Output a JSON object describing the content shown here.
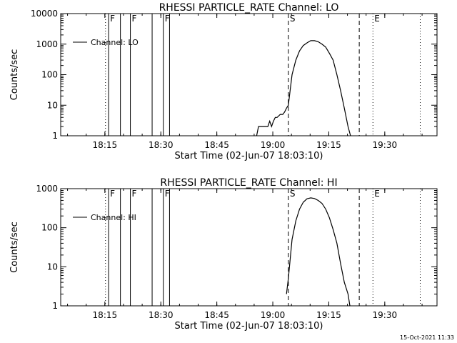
{
  "footer_timestamp": "15-Oct-2021 11:33",
  "chart_data": [
    {
      "type": "line",
      "title": "RHESSI PARTICLE_RATE Channel: LO",
      "xlabel": "Start Time (02-Jun-07 18:03:10)",
      "ylabel": "Counts/sec",
      "x_tick_labels": [
        "18:15",
        "18:30",
        "18:45",
        "19:00",
        "19:15",
        "19:30"
      ],
      "y_tick_labels": [
        "1",
        "10",
        "100",
        "1000",
        "10000"
      ],
      "y_scale": "log",
      "xlim": [
        "18:03:10",
        "19:44:00"
      ],
      "ylim": [
        1,
        10000
      ],
      "legend": {
        "label": "Channel: LO",
        "position": "top-left"
      },
      "markers": [
        {
          "label": "F",
          "time": "18:16:00",
          "style": "solid"
        },
        {
          "label": "",
          "time": "18:19:10",
          "style": "solid"
        },
        {
          "label": "F",
          "time": "18:21:50",
          "style": "solid"
        },
        {
          "label": "",
          "time": "18:27:40",
          "style": "solid"
        },
        {
          "label": "F",
          "time": "18:30:40",
          "style": "solid"
        },
        {
          "label": "",
          "time": "18:32:20",
          "style": "solid"
        },
        {
          "label": "S",
          "time": "19:04:10",
          "style": "dashed"
        },
        {
          "label": "",
          "time": "19:23:10",
          "style": "dashed"
        },
        {
          "label": "E",
          "time": "19:26:50",
          "style": "dotted"
        },
        {
          "label": "",
          "time": "18:15:10",
          "style": "dotted"
        },
        {
          "label": "",
          "time": "19:39:30",
          "style": "dotted"
        }
      ],
      "series": [
        {
          "x": [
            "18:55:40",
            "18:56:10",
            "18:56:40",
            "18:57:10",
            "18:58:00",
            "18:58:40",
            "18:59:10",
            "18:59:40",
            "19:00:10",
            "19:00:40",
            "19:01:10",
            "19:02:00",
            "19:02:40",
            "19:03:10",
            "19:03:40",
            "19:04:10",
            "19:05:10",
            "19:06:10",
            "19:07:10",
            "19:08:10",
            "19:09:10",
            "19:10:10",
            "19:11:10",
            "19:12:10",
            "19:13:10",
            "19:14:10",
            "19:15:10",
            "19:16:10",
            "19:17:10",
            "19:18:10",
            "19:19:10",
            "19:20:10",
            "19:20:50"
          ],
          "y": [
            1,
            2,
            2,
            2,
            2,
            2,
            3,
            2,
            3,
            4,
            4,
            5,
            5,
            6,
            8,
            10,
            100,
            300,
            600,
            900,
            1100,
            1300,
            1300,
            1200,
            1000,
            800,
            500,
            300,
            100,
            30,
            8,
            2,
            1
          ]
        }
      ]
    },
    {
      "type": "line",
      "title": "RHESSI PARTICLE_RATE Channel: HI",
      "xlabel": "Start Time (02-Jun-07 18:03:10)",
      "ylabel": "Counts/sec",
      "x_tick_labels": [
        "18:15",
        "18:30",
        "18:45",
        "19:00",
        "19:15",
        "19:30"
      ],
      "y_tick_labels": [
        "1",
        "10",
        "100",
        "1000"
      ],
      "y_scale": "log",
      "xlim": [
        "18:03:10",
        "19:44:00"
      ],
      "ylim": [
        1,
        1000
      ],
      "legend": {
        "label": "Channel: HI",
        "position": "top-left"
      },
      "markers": [
        {
          "label": "F",
          "time": "18:16:00",
          "style": "solid"
        },
        {
          "label": "",
          "time": "18:19:10",
          "style": "solid"
        },
        {
          "label": "F",
          "time": "18:21:50",
          "style": "solid"
        },
        {
          "label": "",
          "time": "18:27:40",
          "style": "solid"
        },
        {
          "label": "F",
          "time": "18:30:40",
          "style": "solid"
        },
        {
          "label": "",
          "time": "18:32:20",
          "style": "solid"
        },
        {
          "label": "S",
          "time": "19:04:10",
          "style": "dashed"
        },
        {
          "label": "",
          "time": "19:23:10",
          "style": "dashed"
        },
        {
          "label": "E",
          "time": "19:26:50",
          "style": "dotted"
        },
        {
          "label": "",
          "time": "18:15:10",
          "style": "dotted"
        },
        {
          "label": "",
          "time": "19:39:30",
          "style": "dotted"
        }
      ],
      "series": [
        {
          "x": [
            "19:03:40",
            "19:04:10",
            "19:05:10",
            "19:06:10",
            "19:07:10",
            "19:08:10",
            "19:09:10",
            "19:10:10",
            "19:11:10",
            "19:12:10",
            "19:13:10",
            "19:14:10",
            "19:15:10",
            "19:16:10",
            "19:17:10",
            "19:18:10",
            "19:19:10",
            "19:20:10",
            "19:20:40"
          ],
          "y": [
            2,
            5,
            50,
            150,
            300,
            450,
            550,
            580,
            560,
            500,
            420,
            300,
            180,
            90,
            40,
            12,
            4,
            2,
            1
          ]
        }
      ]
    }
  ]
}
